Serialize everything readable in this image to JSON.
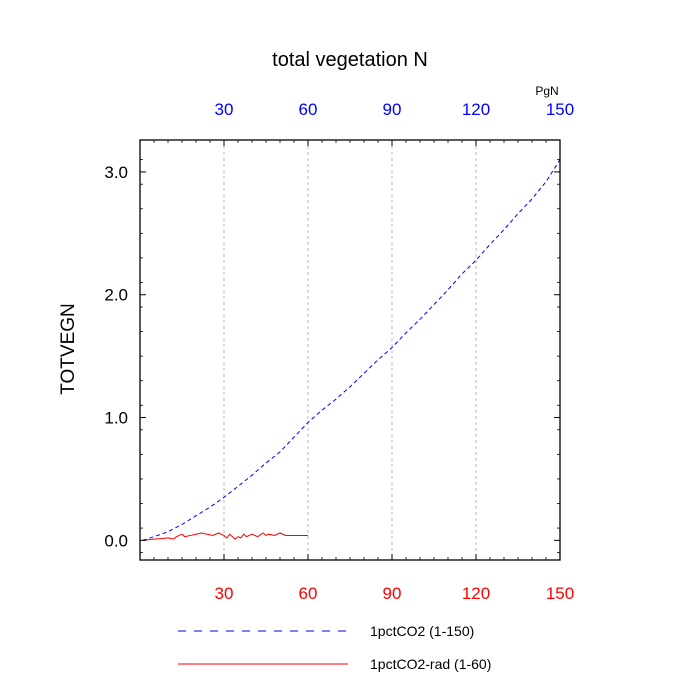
{
  "chart_data": {
    "type": "line",
    "title": "total vegetation N",
    "units_label": "PgN",
    "ylabel": "TOTVEGN",
    "xlabel": "",
    "xlim": [
      0,
      150
    ],
    "ylim": [
      -0.16,
      3.26
    ],
    "grid": "vertical dashed at top/bottom tick positions",
    "x_ticks": [
      30,
      60,
      90,
      120,
      150
    ],
    "x_tick_labels": [
      "30",
      "60",
      "90",
      "120",
      "150"
    ],
    "y_ticks": [
      0.0,
      1.0,
      2.0,
      3.0
    ],
    "y_tick_labels": [
      "0.0",
      "1.0",
      "2.0",
      "3.0"
    ],
    "legend_position": "bottom",
    "series": [
      {
        "name": "1pctCO2 (1-150)",
        "color": "#0000ff",
        "style": "dashed",
        "axis_label_color": "#0000ff",
        "x": [
          1,
          5,
          10,
          15,
          20,
          25,
          30,
          35,
          40,
          45,
          50,
          55,
          60,
          65,
          70,
          75,
          80,
          85,
          90,
          95,
          100,
          105,
          110,
          115,
          120,
          125,
          130,
          135,
          140,
          145,
          150
        ],
        "y": [
          0.0,
          0.03,
          0.07,
          0.13,
          0.2,
          0.27,
          0.35,
          0.44,
          0.53,
          0.63,
          0.72,
          0.84,
          0.96,
          1.06,
          1.15,
          1.25,
          1.36,
          1.47,
          1.57,
          1.69,
          1.8,
          1.92,
          2.04,
          2.17,
          2.28,
          2.41,
          2.53,
          2.66,
          2.78,
          2.92,
          3.1
        ]
      },
      {
        "name": "1pctCO2-rad (1-60)",
        "color": "#ff0000",
        "style": "solid",
        "axis_label_color": "#ff0000",
        "x": [
          1,
          5,
          8,
          10,
          12,
          13,
          15,
          16,
          18,
          20,
          22,
          24,
          26,
          28,
          30,
          31,
          32,
          33,
          34,
          35,
          36,
          37,
          38,
          40,
          42,
          44,
          45,
          46,
          48,
          50,
          52,
          54,
          56,
          58,
          60
        ],
        "y": [
          0.0,
          0.01,
          0.015,
          0.02,
          0.01,
          0.03,
          0.05,
          0.03,
          0.04,
          0.05,
          0.06,
          0.05,
          0.04,
          0.06,
          0.04,
          0.02,
          0.05,
          0.03,
          0.01,
          0.03,
          0.02,
          0.05,
          0.03,
          0.05,
          0.03,
          0.06,
          0.04,
          0.05,
          0.04,
          0.06,
          0.04,
          0.04,
          0.04,
          0.04,
          0.04
        ]
      }
    ]
  }
}
